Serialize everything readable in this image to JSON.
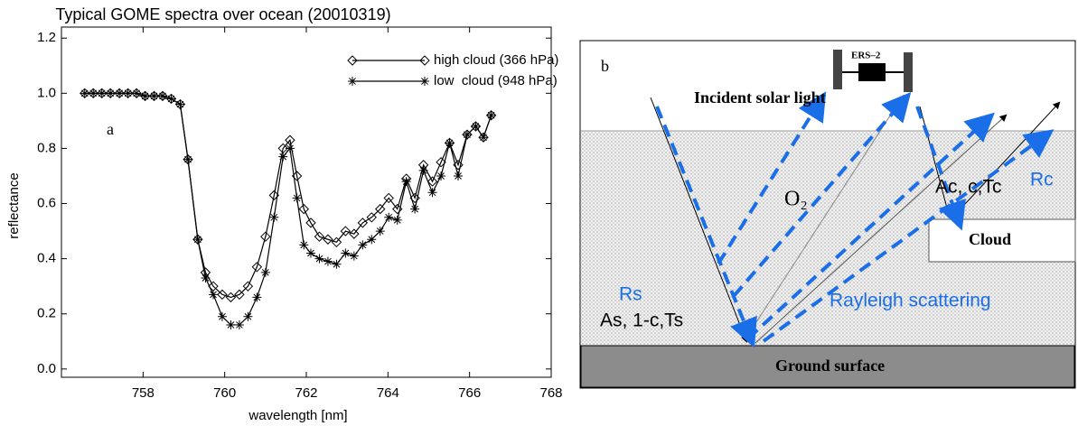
{
  "chart_data": {
    "type": "line",
    "title": "Typical GOME spectra over ocean (20010319)",
    "x_label": "wavelength [nm]",
    "y_label": "reflectance",
    "annotation": "a",
    "x": [
      756.57,
      756.78,
      756.99,
      757.2,
      757.42,
      757.63,
      757.84,
      758.05,
      758.27,
      758.48,
      758.69,
      758.91,
      759.1,
      759.34,
      759.53,
      759.72,
      759.94,
      760.15,
      760.36,
      760.57,
      760.79,
      761.0,
      761.21,
      761.43,
      761.6,
      761.77,
      761.94,
      762.11,
      762.32,
      762.53,
      762.74,
      762.96,
      763.17,
      763.38,
      763.6,
      763.81,
      764.02,
      764.23,
      764.45,
      764.66,
      764.87,
      765.09,
      765.3,
      765.51,
      765.72,
      765.94,
      766.15,
      766.34,
      766.53
    ],
    "series": [
      {
        "name": "high cloud (366 hPa)",
        "color": "#000000",
        "marker": "diamond",
        "values": [
          1.0,
          1.0,
          1.0,
          1.0,
          1.0,
          1.0,
          1.0,
          0.99,
          0.99,
          0.99,
          0.98,
          0.96,
          0.76,
          0.47,
          0.35,
          0.3,
          0.27,
          0.26,
          0.27,
          0.3,
          0.37,
          0.48,
          0.63,
          0.8,
          0.83,
          0.7,
          0.58,
          0.53,
          0.48,
          0.47,
          0.46,
          0.5,
          0.49,
          0.53,
          0.55,
          0.58,
          0.62,
          0.58,
          0.69,
          0.62,
          0.74,
          0.68,
          0.75,
          0.82,
          0.74,
          0.85,
          0.88,
          0.84,
          0.92
        ]
      },
      {
        "name": "low  cloud (948 hPa)",
        "color": "#000000",
        "marker": "asterisk",
        "values": [
          1.0,
          1.0,
          1.0,
          1.0,
          1.0,
          1.0,
          1.0,
          0.99,
          0.99,
          0.99,
          0.98,
          0.96,
          0.76,
          0.47,
          0.33,
          0.27,
          0.19,
          0.16,
          0.16,
          0.19,
          0.26,
          0.35,
          0.55,
          0.77,
          0.8,
          0.62,
          0.45,
          0.42,
          0.4,
          0.39,
          0.38,
          0.42,
          0.41,
          0.45,
          0.47,
          0.5,
          0.55,
          0.54,
          0.68,
          0.58,
          0.72,
          0.64,
          0.7,
          0.82,
          0.7,
          0.85,
          0.88,
          0.84,
          0.92
        ]
      }
    ],
    "xlim": [
      756,
      768
    ],
    "xticks": [
      758,
      760,
      762,
      764,
      766,
      768
    ],
    "ylim": [
      -0.03,
      1.24
    ],
    "yticks": [
      {
        "value": 0,
        "label": "0.0"
      },
      0.2,
      0.4,
      0.6,
      0.8,
      {
        "value": 1,
        "label": "1.0"
      },
      1.2
    ],
    "legend": "upper right",
    "grid": false
  },
  "diagram": {
    "panel_label": "b",
    "satellite": "ERS–2",
    "incident": "Incident solar light",
    "gas": "O₂",
    "cloud_terms": "Ac, c,Tc",
    "cloud_reflectance": "Rc",
    "cloud": "Cloud",
    "surface_reflectance": "Rs",
    "surface_terms": "As, 1-c,Ts",
    "scattering": "Rayleigh scattering",
    "ground": "Ground surface"
  }
}
